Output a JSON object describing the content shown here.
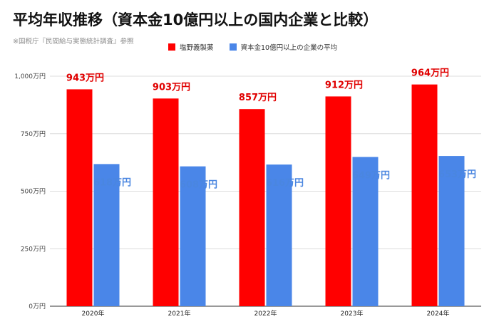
{
  "title": "平均年収推移（資本金10億円以上の国内企業と比較）",
  "subtitle": "※国税庁『民間給与実態統計調査』参照",
  "chart_data": {
    "type": "bar",
    "categories": [
      "2020年",
      "2021年",
      "2022年",
      "2023年",
      "2024年"
    ],
    "series": [
      {
        "name": "塩野義製薬",
        "color": "#ff0000",
        "values": [
          943,
          903,
          857,
          912,
          964
        ],
        "labels": [
          "943万円",
          "903万円",
          "857万円",
          "912万円",
          "964万円"
        ]
      },
      {
        "name": "資本金10億円以上の企業の平均",
        "color": "#4a86e8",
        "values": [
          618,
          608,
          616,
          649,
          653
        ],
        "labels": [
          "618万円",
          "608万円",
          "616万円",
          "649万円",
          "653万円"
        ]
      }
    ],
    "ylim": [
      0,
      1000
    ],
    "yticks": [
      0,
      250,
      500,
      750,
      1000
    ],
    "ytick_labels": [
      "0万円",
      "250万円",
      "500万円",
      "750万円",
      "1,000万円"
    ],
    "grid": true,
    "legend_position": "top-center"
  }
}
